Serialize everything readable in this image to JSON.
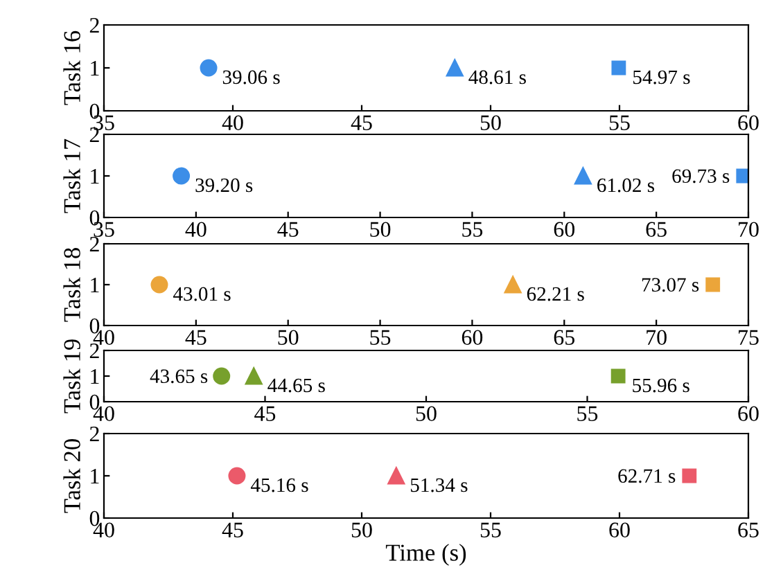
{
  "chart_data": [
    {
      "type": "scatter",
      "ylabel": "Task 16",
      "xlim": [
        35,
        60
      ],
      "xticks": [
        35,
        40,
        45,
        50,
        55,
        60
      ],
      "ylim": [
        0,
        2
      ],
      "yticks": [
        0,
        1,
        2
      ],
      "series": [
        {
          "x": [
            39.06
          ],
          "values": [
            1
          ],
          "marker": "circle",
          "color": "#3c8ee8"
        },
        {
          "x": [
            48.61
          ],
          "values": [
            1
          ],
          "marker": "triangle",
          "color": "#3c8ee8"
        },
        {
          "x": [
            54.97
          ],
          "values": [
            1
          ],
          "marker": "square",
          "color": "#3c8ee8"
        }
      ],
      "annotations": [
        {
          "text": "39.06 s",
          "x": 39.06,
          "y": 1
        },
        {
          "text": "48.61 s",
          "x": 48.61,
          "y": 1
        },
        {
          "text": "54.97 s",
          "x": 54.97,
          "y": 1
        }
      ]
    },
    {
      "type": "scatter",
      "ylabel": "Task 17",
      "xlim": [
        35,
        70
      ],
      "xticks": [
        35,
        40,
        45,
        50,
        55,
        60,
        65,
        70
      ],
      "ylim": [
        0,
        2
      ],
      "yticks": [
        0,
        1,
        2
      ],
      "series": [
        {
          "x": [
            39.2
          ],
          "values": [
            1
          ],
          "marker": "circle",
          "color": "#3c8ee8"
        },
        {
          "x": [
            61.02
          ],
          "values": [
            1
          ],
          "marker": "triangle",
          "color": "#3c8ee8"
        },
        {
          "x": [
            69.73
          ],
          "values": [
            1
          ],
          "marker": "square",
          "color": "#3c8ee8"
        }
      ],
      "annotations": [
        {
          "text": "39.20 s",
          "x": 39.2,
          "y": 1
        },
        {
          "text": "61.02 s",
          "x": 61.02,
          "y": 1
        },
        {
          "text": "69.73 s",
          "x": 69.73,
          "y": 1
        }
      ]
    },
    {
      "type": "scatter",
      "ylabel": "Task 18",
      "xlim": [
        40,
        75
      ],
      "xticks": [
        40,
        45,
        50,
        55,
        60,
        65,
        70,
        75
      ],
      "ylim": [
        0,
        2
      ],
      "yticks": [
        0,
        1,
        2
      ],
      "series": [
        {
          "x": [
            43.01
          ],
          "values": [
            1
          ],
          "marker": "circle",
          "color": "#eba53a"
        },
        {
          "x": [
            62.21
          ],
          "values": [
            1
          ],
          "marker": "triangle",
          "color": "#eba53a"
        },
        {
          "x": [
            73.07
          ],
          "values": [
            1
          ],
          "marker": "square",
          "color": "#eba53a"
        }
      ],
      "annotations": [
        {
          "text": "43.01 s",
          "x": 43.01,
          "y": 1
        },
        {
          "text": "62.21 s",
          "x": 62.21,
          "y": 1
        },
        {
          "text": "73.07 s",
          "x": 73.07,
          "y": 1
        }
      ]
    },
    {
      "type": "scatter",
      "ylabel": "Task 19",
      "xlim": [
        40,
        60
      ],
      "xticks": [
        40,
        45,
        50,
        55,
        60
      ],
      "ylim": [
        0,
        2
      ],
      "yticks": [
        0,
        1,
        2
      ],
      "series": [
        {
          "x": [
            43.65
          ],
          "values": [
            1
          ],
          "marker": "circle",
          "color": "#77a02c"
        },
        {
          "x": [
            44.65
          ],
          "values": [
            1
          ],
          "marker": "triangle",
          "color": "#77a02c"
        },
        {
          "x": [
            55.96
          ],
          "values": [
            1
          ],
          "marker": "square",
          "color": "#77a02c"
        }
      ],
      "annotations": [
        {
          "text": "43.65 s",
          "x": 43.65,
          "y": 1
        },
        {
          "text": "44.65 s",
          "x": 44.65,
          "y": 1
        },
        {
          "text": "55.96 s",
          "x": 55.96,
          "y": 1
        }
      ]
    },
    {
      "type": "scatter",
      "ylabel": "Task 20",
      "xlabel": "Time (s)",
      "xlim": [
        40,
        65
      ],
      "xticks": [
        40,
        45,
        50,
        55,
        60,
        65
      ],
      "ylim": [
        0,
        2
      ],
      "yticks": [
        0,
        1,
        2
      ],
      "series": [
        {
          "x": [
            45.16
          ],
          "values": [
            1
          ],
          "marker": "circle",
          "color": "#eb5a6a"
        },
        {
          "x": [
            51.34
          ],
          "values": [
            1
          ],
          "marker": "triangle",
          "color": "#eb5a6a"
        },
        {
          "x": [
            62.71
          ],
          "values": [
            1
          ],
          "marker": "square",
          "color": "#eb5a6a"
        }
      ],
      "annotations": [
        {
          "text": "45.16 s",
          "x": 45.16,
          "y": 1
        },
        {
          "text": "51.34 s",
          "x": 51.34,
          "y": 1
        },
        {
          "text": "62.71 s",
          "x": 62.71,
          "y": 1
        }
      ]
    }
  ]
}
